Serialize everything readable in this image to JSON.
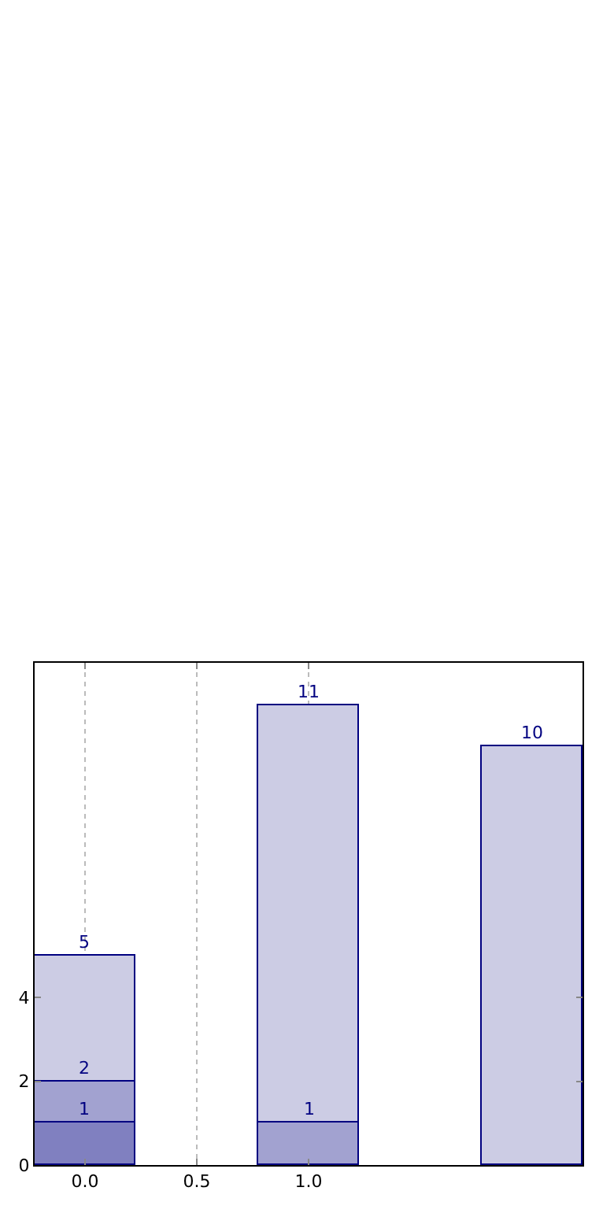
{
  "chart_data": {
    "type": "bar",
    "stacked": true,
    "x": [
      0.0,
      1.0,
      2.0
    ],
    "series": [
      {
        "color": "#8080c0",
        "values": [
          1,
          null,
          null
        ]
      },
      {
        "color": "#a2a2d0",
        "values": [
          1,
          1,
          null
        ]
      },
      {
        "color": "#ccccE4",
        "values": [
          3,
          10,
          10
        ]
      }
    ],
    "annotations": [
      {
        "text": "1",
        "x": 0.0,
        "y": 1
      },
      {
        "text": "2",
        "x": 0.0,
        "y": 2
      },
      {
        "text": "5",
        "x": 0.0,
        "y": 5
      },
      {
        "text": "1",
        "x": 1.0,
        "y": 1
      },
      {
        "text": "11",
        "x": 1.0,
        "y": 11
      },
      {
        "text": "10",
        "x": 2.0,
        "y": 10
      }
    ],
    "xlim": [
      -0.225,
      2.225
    ],
    "xticks": [
      {
        "value": 0.0,
        "label": "0.0"
      },
      0.5,
      {
        "value": 1.0,
        "label": "1.0"
      }
    ],
    "ylim": [
      0,
      12
    ],
    "yticks": [
      0,
      2,
      4
    ],
    "grid": "x"
  }
}
